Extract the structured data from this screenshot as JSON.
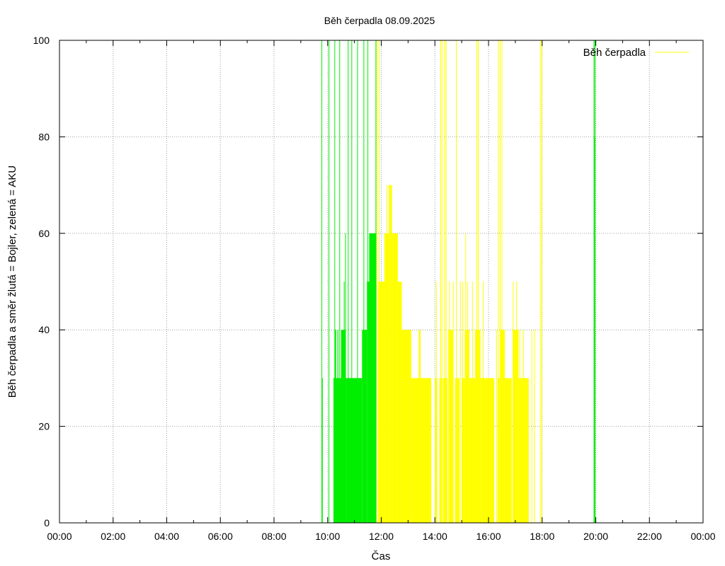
{
  "chart_data": {
    "type": "bar",
    "title": "Běh čerpadla 08.09.2025",
    "xlabel": "Čas",
    "ylabel": "Běh čerpadla a směr žlutá = Bojler, zelená = AKU",
    "xlim_hours": [
      0,
      24
    ],
    "ylim": [
      0,
      100
    ],
    "x_tick_labels": [
      "00:00",
      "02:00",
      "04:00",
      "06:00",
      "08:00",
      "10:00",
      "12:00",
      "14:00",
      "16:00",
      "18:00",
      "20:00",
      "22:00",
      "00:00"
    ],
    "y_tick_labels": [
      "0",
      "20",
      "40",
      "60",
      "80",
      "100"
    ],
    "grid": true,
    "legend": {
      "position": "top-right",
      "entries": [
        {
          "label": "Běh čerpadla",
          "color": "#ffff00"
        }
      ]
    },
    "colors": {
      "yellow": "#ffff00",
      "green": "#00ee00",
      "grid": "#a0a0a0",
      "frame": "#000000"
    },
    "series": [
      {
        "color": "green",
        "segments": [
          {
            "start": "09:47",
            "end": "09:49",
            "value": 30
          },
          {
            "start": "10:13",
            "end": "10:28",
            "value": 30
          },
          {
            "start": "10:16",
            "end": "10:19",
            "value": 40
          },
          {
            "start": "10:22",
            "end": "10:24",
            "value": 40
          },
          {
            "start": "10:28",
            "end": "10:43",
            "value": 30
          },
          {
            "start": "10:30",
            "end": "10:40",
            "value": 40
          },
          {
            "start": "10:43",
            "end": "11:17",
            "value": 30
          },
          {
            "start": "11:17",
            "end": "11:28",
            "value": 40
          },
          {
            "start": "11:28",
            "end": "11:33",
            "value": 50
          },
          {
            "start": "11:33",
            "end": "11:49",
            "value": 60
          },
          {
            "start": "19:57",
            "end": "19:59",
            "value": 80
          }
        ],
        "spikes": [
          {
            "t": "09:47",
            "value": 100
          },
          {
            "t": "10:03",
            "value": 100
          },
          {
            "t": "10:16",
            "value": 100
          },
          {
            "t": "10:27",
            "value": 100
          },
          {
            "t": "10:37",
            "value": 50
          },
          {
            "t": "10:40",
            "value": 60
          },
          {
            "t": "10:46",
            "value": 100
          },
          {
            "t": "10:54",
            "value": 100
          },
          {
            "t": "11:07",
            "value": 100
          },
          {
            "t": "11:21",
            "value": 100
          },
          {
            "t": "11:30",
            "value": 100
          },
          {
            "t": "11:48",
            "value": 100
          },
          {
            "t": "19:56",
            "value": 100
          },
          {
            "t": "19:58",
            "value": 100
          }
        ]
      },
      {
        "color": "yellow",
        "segments": [
          {
            "start": "11:53",
            "end": "12:07",
            "value": 50
          },
          {
            "start": "12:07",
            "end": "12:12",
            "value": 60
          },
          {
            "start": "12:12",
            "end": "12:17",
            "value": 60
          },
          {
            "start": "12:17",
            "end": "12:24",
            "value": 70
          },
          {
            "start": "12:24",
            "end": "12:37",
            "value": 60
          },
          {
            "start": "12:37",
            "end": "12:46",
            "value": 50
          },
          {
            "start": "12:46",
            "end": "13:07",
            "value": 40
          },
          {
            "start": "13:07",
            "end": "13:52",
            "value": 30
          },
          {
            "start": "13:24",
            "end": "13:28",
            "value": 40
          },
          {
            "start": "14:00",
            "end": "14:05",
            "value": 30
          },
          {
            "start": "14:10",
            "end": "14:15",
            "value": 30
          },
          {
            "start": "14:18",
            "end": "14:28",
            "value": 30
          },
          {
            "start": "14:30",
            "end": "14:40",
            "value": 40
          },
          {
            "start": "14:45",
            "end": "14:55",
            "value": 30
          },
          {
            "start": "15:00",
            "end": "15:07",
            "value": 30
          },
          {
            "start": "15:07",
            "end": "15:17",
            "value": 40
          },
          {
            "start": "15:17",
            "end": "15:30",
            "value": 30
          },
          {
            "start": "15:30",
            "end": "15:42",
            "value": 40
          },
          {
            "start": "15:42",
            "end": "16:13",
            "value": 30
          },
          {
            "start": "16:20",
            "end": "16:25",
            "value": 30
          },
          {
            "start": "16:27",
            "end": "16:35",
            "value": 40
          },
          {
            "start": "16:35",
            "end": "16:52",
            "value": 30
          },
          {
            "start": "16:54",
            "end": "17:07",
            "value": 40
          },
          {
            "start": "17:07",
            "end": "17:30",
            "value": 30
          }
        ],
        "spikes": [
          {
            "t": "11:50",
            "value": 100
          },
          {
            "t": "11:55",
            "value": 100
          },
          {
            "t": "12:13",
            "value": 70
          },
          {
            "t": "14:03",
            "value": 50
          },
          {
            "t": "14:13",
            "value": 100
          },
          {
            "t": "14:16",
            "value": 100
          },
          {
            "t": "14:22",
            "value": 100
          },
          {
            "t": "14:25",
            "value": 100
          },
          {
            "t": "14:33",
            "value": 50
          },
          {
            "t": "14:41",
            "value": 50
          },
          {
            "t": "14:48",
            "value": 100
          },
          {
            "t": "14:57",
            "value": 50
          },
          {
            "t": "15:02",
            "value": 50
          },
          {
            "t": "15:09",
            "value": 60
          },
          {
            "t": "15:13",
            "value": 50
          },
          {
            "t": "15:24",
            "value": 50
          },
          {
            "t": "15:34",
            "value": 100
          },
          {
            "t": "15:37",
            "value": 100
          },
          {
            "t": "15:48",
            "value": 50
          },
          {
            "t": "16:18",
            "value": 40
          },
          {
            "t": "16:22",
            "value": 100
          },
          {
            "t": "16:26",
            "value": 100
          },
          {
            "t": "16:30",
            "value": 100
          },
          {
            "t": "16:36",
            "value": 40
          },
          {
            "t": "16:55",
            "value": 50
          },
          {
            "t": "17:03",
            "value": 50
          },
          {
            "t": "17:10",
            "value": 40
          },
          {
            "t": "17:18",
            "value": 40
          },
          {
            "t": "17:37",
            "value": 40
          },
          {
            "t": "17:43",
            "value": 40
          },
          {
            "t": "17:56",
            "value": 100
          },
          {
            "t": "17:59",
            "value": 100
          }
        ]
      }
    ]
  }
}
